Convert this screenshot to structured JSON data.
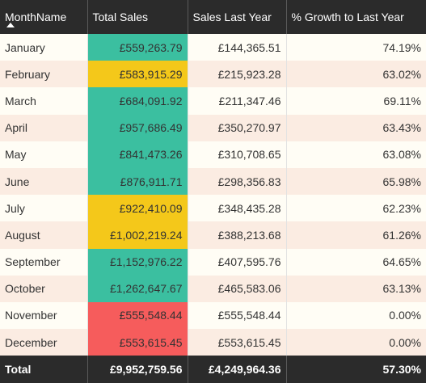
{
  "table": {
    "headers": {
      "month": "MonthName",
      "total_sales": "Total Sales",
      "sales_last_year": "Sales Last Year",
      "growth": "% Growth to Last Year"
    },
    "sort_icon": "sort-ascending-icon",
    "colors": {
      "green": "#3bbfa0",
      "yellow": "#f4c81a",
      "red": "#f65c5c",
      "header": "#2b2b2b"
    },
    "rows": [
      {
        "month": "January",
        "total_sales": "£559,263.79",
        "sales_last_year": "£144,365.51",
        "growth": "74.19%",
        "highlight": "green"
      },
      {
        "month": "February",
        "total_sales": "£583,915.29",
        "sales_last_year": "£215,923.28",
        "growth": "63.02%",
        "highlight": "yellow"
      },
      {
        "month": "March",
        "total_sales": "£684,091.92",
        "sales_last_year": "£211,347.46",
        "growth": "69.11%",
        "highlight": "green"
      },
      {
        "month": "April",
        "total_sales": "£957,686.49",
        "sales_last_year": "£350,270.97",
        "growth": "63.43%",
        "highlight": "green"
      },
      {
        "month": "May",
        "total_sales": "£841,473.26",
        "sales_last_year": "£310,708.65",
        "growth": "63.08%",
        "highlight": "green"
      },
      {
        "month": "June",
        "total_sales": "£876,911.71",
        "sales_last_year": "£298,356.83",
        "growth": "65.98%",
        "highlight": "green"
      },
      {
        "month": "July",
        "total_sales": "£922,410.09",
        "sales_last_year": "£348,435.28",
        "growth": "62.23%",
        "highlight": "yellow"
      },
      {
        "month": "August",
        "total_sales": "£1,002,219.24",
        "sales_last_year": "£388,213.68",
        "growth": "61.26%",
        "highlight": "yellow"
      },
      {
        "month": "September",
        "total_sales": "£1,152,976.22",
        "sales_last_year": "£407,595.76",
        "growth": "64.65%",
        "highlight": "green"
      },
      {
        "month": "October",
        "total_sales": "£1,262,647.67",
        "sales_last_year": "£465,583.06",
        "growth": "63.13%",
        "highlight": "green"
      },
      {
        "month": "November",
        "total_sales": "£555,548.44",
        "sales_last_year": "£555,548.44",
        "growth": "0.00%",
        "highlight": "red"
      },
      {
        "month": "December",
        "total_sales": "£553,615.45",
        "sales_last_year": "£553,615.45",
        "growth": "0.00%",
        "highlight": "red"
      }
    ],
    "total": {
      "label": "Total",
      "total_sales": "£9,952,759.56",
      "sales_last_year": "£4,249,964.36",
      "growth": "57.30%"
    }
  }
}
